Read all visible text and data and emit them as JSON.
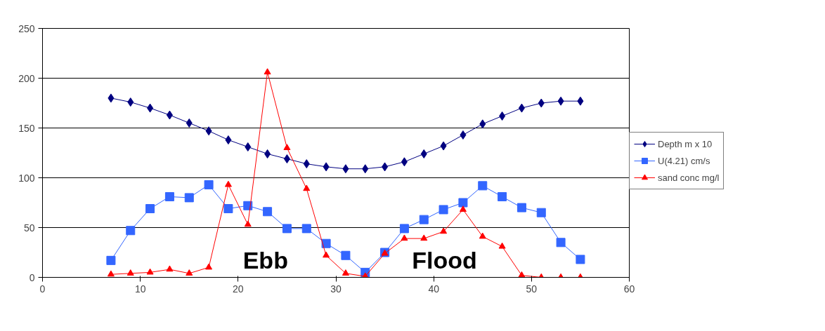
{
  "chart_data": {
    "type": "line",
    "x": [
      7,
      9,
      11,
      13,
      15,
      17,
      19,
      21,
      23,
      25,
      27,
      29,
      31,
      33,
      35,
      37,
      39,
      41,
      43,
      45,
      47,
      49,
      51,
      53,
      55
    ],
    "series": [
      {
        "name": "Depth m x 10",
        "color": "#000080",
        "marker": "diamond",
        "values": [
          180,
          176,
          170,
          163,
          155,
          147,
          138,
          131,
          124,
          119,
          114,
          111,
          109,
          109,
          111,
          116,
          124,
          132,
          143,
          154,
          162,
          170,
          175,
          177,
          177
        ]
      },
      {
        "name": "U(4.21) cm/s",
        "color": "#3366ff",
        "marker": "square",
        "values": [
          17,
          47,
          69,
          81,
          80,
          93,
          69,
          72,
          66,
          49,
          49,
          34,
          22,
          5,
          25,
          49,
          58,
          68,
          75,
          92,
          81,
          70,
          65,
          35,
          18
        ]
      },
      {
        "name": "sand conc mg/l",
        "color": "#ff0000",
        "marker": "triangle",
        "values": [
          3,
          4,
          5,
          8,
          4,
          10,
          93,
          53,
          206,
          130,
          89,
          22,
          4,
          1,
          24,
          39,
          39,
          46,
          68,
          41,
          31,
          2,
          0,
          0,
          0
        ]
      }
    ],
    "xlim": [
      0,
      60
    ],
    "xticks": [
      0,
      10,
      20,
      30,
      40,
      50,
      60
    ],
    "ylim": [
      0,
      250
    ],
    "yticks": [
      0,
      50,
      100,
      150,
      200,
      250
    ],
    "grid": "y",
    "legend": "right",
    "annotations": [
      "Ebb",
      "Flood"
    ]
  }
}
